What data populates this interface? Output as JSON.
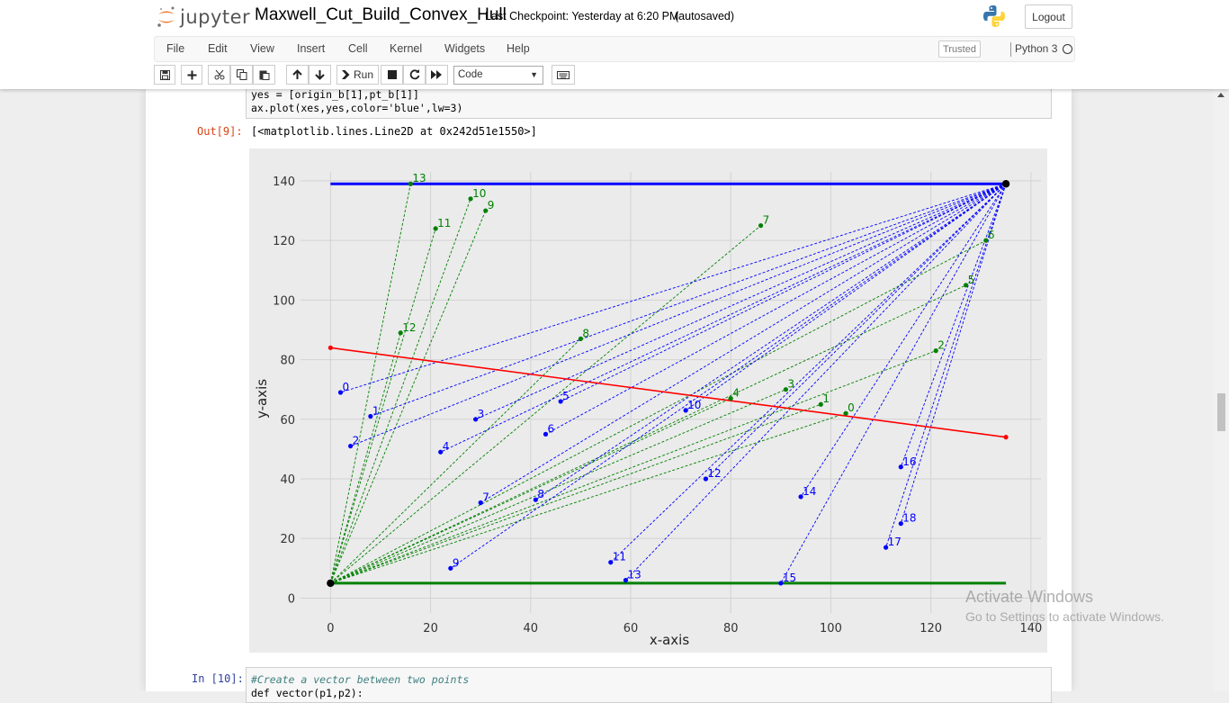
{
  "header": {
    "logo_text": "jupyter",
    "notebook_name": "Maxwell_Cut_Build_Convex_Hull",
    "checkpoint": "Last Checkpoint: Yesterday at 6:20 PM",
    "autosave": "(autosaved)",
    "logout_label": "Logout"
  },
  "menu": {
    "items": [
      "File",
      "Edit",
      "View",
      "Insert",
      "Cell",
      "Kernel",
      "Widgets",
      "Help"
    ],
    "trusted": "Trusted",
    "kernel": "Python 3"
  },
  "toolbar": {
    "run_label": "Run",
    "cell_type": "Code",
    "icons": [
      "save-icon",
      "plus-icon",
      "cut-icon",
      "copy-icon",
      "paste-icon",
      "arrow-up-icon",
      "arrow-down-icon",
      "run-icon",
      "stop-icon",
      "restart-icon",
      "fast-forward-icon",
      "keyboard-icon"
    ]
  },
  "cells": {
    "cell9_lines": [
      "yes = [origin_b[1],pt_b[1]]",
      "ax.plot(xes,yes,color='blue',lw=3)"
    ],
    "out9_prompt": "Out[9]:",
    "out9_text": "[<matplotlib.lines.Line2D at 0x242d51e1550>]",
    "in10_prompt": "In [10]:",
    "in10_line1": "#Create a vector between two points",
    "in10_line2": "def vector(p1,p2):"
  },
  "chart_data": {
    "type": "scatter",
    "xlabel": "x-axis",
    "ylabel": "y-axis",
    "xlim": [
      -6,
      142
    ],
    "ylim": [
      -5,
      143
    ],
    "xticks": [
      0,
      20,
      40,
      60,
      80,
      100,
      120,
      140
    ],
    "yticks": [
      0,
      20,
      40,
      60,
      80,
      100,
      120,
      140
    ],
    "grid": true,
    "background": "#ebebeb",
    "origin_a": [
      0,
      5
    ],
    "origin_b": [
      135,
      139
    ],
    "red_line": {
      "points": [
        [
          0,
          84
        ],
        [
          135,
          54
        ]
      ],
      "color": "#ff0000"
    },
    "hull_top": {
      "points": [
        [
          0,
          139
        ],
        [
          135,
          139
        ]
      ],
      "color": "#0000ff"
    },
    "hull_bottom": {
      "points": [
        [
          0,
          5
        ],
        [
          135,
          5
        ]
      ],
      "color": "#008000"
    },
    "green_points": [
      {
        "label": "0",
        "x": 103,
        "y": 62
      },
      {
        "label": "1",
        "x": 98,
        "y": 65
      },
      {
        "label": "2",
        "x": 121,
        "y": 83
      },
      {
        "label": "3",
        "x": 91,
        "y": 70
      },
      {
        "label": "4",
        "x": 80,
        "y": 67
      },
      {
        "label": "5",
        "x": 127,
        "y": 105
      },
      {
        "label": "6",
        "x": 131,
        "y": 120
      },
      {
        "label": "7",
        "x": 86,
        "y": 125
      },
      {
        "label": "8",
        "x": 50,
        "y": 87
      },
      {
        "label": "9",
        "x": 31,
        "y": 130
      },
      {
        "label": "10",
        "x": 28,
        "y": 134
      },
      {
        "label": "11",
        "x": 21,
        "y": 124
      },
      {
        "label": "12",
        "x": 14,
        "y": 89
      },
      {
        "label": "13",
        "x": 16,
        "y": 139
      }
    ],
    "blue_points": [
      {
        "label": "0",
        "x": 2,
        "y": 69
      },
      {
        "label": "1",
        "x": 8,
        "y": 61
      },
      {
        "label": "2",
        "x": 4,
        "y": 51
      },
      {
        "label": "3",
        "x": 29,
        "y": 60
      },
      {
        "label": "4",
        "x": 22,
        "y": 49
      },
      {
        "label": "5",
        "x": 46,
        "y": 66
      },
      {
        "label": "6",
        "x": 43,
        "y": 55
      },
      {
        "label": "7",
        "x": 30,
        "y": 32
      },
      {
        "label": "8",
        "x": 41,
        "y": 33
      },
      {
        "label": "9",
        "x": 24,
        "y": 10
      },
      {
        "label": "10",
        "x": 71,
        "y": 63
      },
      {
        "label": "11",
        "x": 56,
        "y": 12
      },
      {
        "label": "12",
        "x": 75,
        "y": 40
      },
      {
        "label": "13",
        "x": 59,
        "y": 6
      },
      {
        "label": "14",
        "x": 94,
        "y": 34
      },
      {
        "label": "15",
        "x": 90,
        "y": 5
      },
      {
        "label": "16",
        "x": 114,
        "y": 44
      },
      {
        "label": "17",
        "x": 111,
        "y": 17
      },
      {
        "label": "18",
        "x": 114,
        "y": 25
      }
    ]
  },
  "watermark": {
    "line1": "Activate Windows",
    "line2": "Go to Settings to activate Windows."
  }
}
